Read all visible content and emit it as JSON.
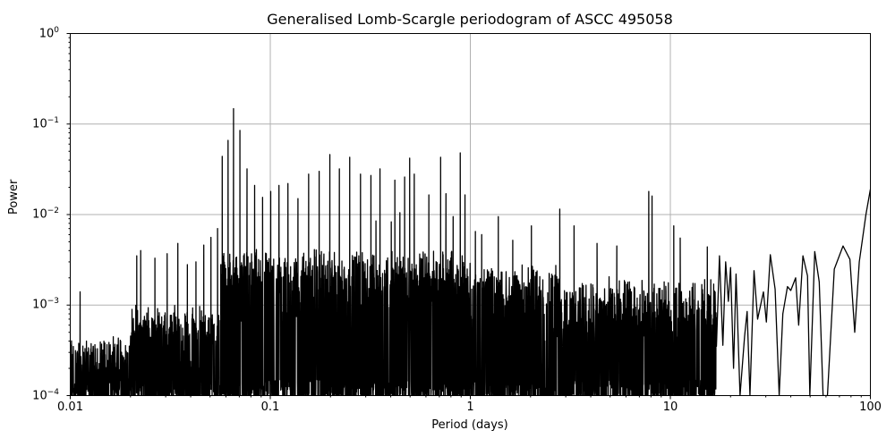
{
  "chart_data": {
    "type": "line",
    "title": "Generalised Lomb-Scargle periodogram of ASCC 495058",
    "xlabel": "Period (days)",
    "ylabel": "Power",
    "xscale": "log",
    "yscale": "log",
    "xlim": [
      0.01,
      100
    ],
    "ylim": [
      0.0001,
      1
    ],
    "grid": true,
    "x_ticks": [
      "0.01",
      "0.1",
      "1",
      "10",
      "100"
    ],
    "y_ticks": [
      {
        "base": "10",
        "exp": "0"
      },
      {
        "base": "10",
        "exp": "−1"
      },
      {
        "base": "10",
        "exp": "−2"
      },
      {
        "base": "10",
        "exp": "−3"
      },
      {
        "base": "10",
        "exp": "−4"
      }
    ],
    "line_color": "#000000",
    "grid_color": "#b0b0b0",
    "notable_peaks": [
      {
        "period": 0.0112,
        "power": 0.0014
      },
      {
        "period": 0.0215,
        "power": 0.0035
      },
      {
        "period": 0.0225,
        "power": 0.004
      },
      {
        "period": 0.0265,
        "power": 0.0033
      },
      {
        "period": 0.0305,
        "power": 0.0037
      },
      {
        "period": 0.0345,
        "power": 0.0048
      },
      {
        "period": 0.0385,
        "power": 0.0028
      },
      {
        "period": 0.0425,
        "power": 0.003
      },
      {
        "period": 0.0465,
        "power": 0.0046
      },
      {
        "period": 0.0505,
        "power": 0.0056
      },
      {
        "period": 0.0545,
        "power": 0.007
      },
      {
        "period": 0.0575,
        "power": 0.044
      },
      {
        "period": 0.0615,
        "power": 0.066
      },
      {
        "period": 0.0655,
        "power": 0.148
      },
      {
        "period": 0.0705,
        "power": 0.085
      },
      {
        "period": 0.0765,
        "power": 0.032
      },
      {
        "period": 0.0835,
        "power": 0.021
      },
      {
        "period": 0.0915,
        "power": 0.0155
      },
      {
        "period": 0.1005,
        "power": 0.018
      },
      {
        "period": 0.1105,
        "power": 0.021
      },
      {
        "period": 0.1225,
        "power": 0.022
      },
      {
        "period": 0.1375,
        "power": 0.015
      },
      {
        "period": 0.1555,
        "power": 0.028
      },
      {
        "period": 0.1755,
        "power": 0.03
      },
      {
        "period": 0.1985,
        "power": 0.046
      },
      {
        "period": 0.2215,
        "power": 0.032
      },
      {
        "period": 0.2495,
        "power": 0.043
      },
      {
        "period": 0.2825,
        "power": 0.028
      },
      {
        "period": 0.3185,
        "power": 0.027
      },
      {
        "period": 0.3375,
        "power": 0.0085
      },
      {
        "period": 0.3535,
        "power": 0.032
      },
      {
        "period": 0.4025,
        "power": 0.0083
      },
      {
        "period": 0.4195,
        "power": 0.024
      },
      {
        "period": 0.4445,
        "power": 0.0105
      },
      {
        "period": 0.4695,
        "power": 0.026
      },
      {
        "period": 0.4975,
        "power": 0.042
      },
      {
        "period": 0.5245,
        "power": 0.028
      },
      {
        "period": 0.6205,
        "power": 0.0165
      },
      {
        "period": 0.7105,
        "power": 0.043
      },
      {
        "period": 0.7555,
        "power": 0.017
      },
      {
        "period": 0.8205,
        "power": 0.0095
      },
      {
        "period": 0.8905,
        "power": 0.048
      },
      {
        "period": 0.9405,
        "power": 0.0165
      },
      {
        "period": 1.06,
        "power": 0.0065
      },
      {
        "period": 1.14,
        "power": 0.006
      },
      {
        "period": 1.38,
        "power": 0.0095
      },
      {
        "period": 1.63,
        "power": 0.0052
      },
      {
        "period": 2.02,
        "power": 0.0075
      },
      {
        "period": 2.8,
        "power": 0.0115
      },
      {
        "period": 3.3,
        "power": 0.0075
      },
      {
        "period": 4.3,
        "power": 0.0048
      },
      {
        "period": 5.4,
        "power": 0.0045
      },
      {
        "period": 7.8,
        "power": 0.018
      },
      {
        "period": 8.1,
        "power": 0.016
      },
      {
        "period": 10.4,
        "power": 0.0075
      },
      {
        "period": 11.2,
        "power": 0.0055
      },
      {
        "period": 15.3,
        "power": 0.0044
      },
      {
        "period": 17.9,
        "power": 0.0035
      },
      {
        "period": 21.3,
        "power": 0.0022
      },
      {
        "period": 25.2,
        "power": 0.0035
      },
      {
        "period": 27.9,
        "power": 0.0013
      },
      {
        "period": 31.6,
        "power": 0.0036
      },
      {
        "period": 38.5,
        "power": 0.0017
      },
      {
        "period": 44.0,
        "power": 0.0021
      },
      {
        "period": 52.7,
        "power": 0.0039
      },
      {
        "period": 62.0,
        "power": 0.0018
      },
      {
        "period": 76.5,
        "power": 0.0045
      },
      {
        "period": 100,
        "power": 0.019
      }
    ],
    "smooth_tail": [
      [
        17.0,
        0.00035
      ],
      [
        17.6,
        0.0035
      ],
      [
        18.3,
        0.00036
      ],
      [
        18.9,
        0.003
      ],
      [
        19.5,
        0.0011
      ],
      [
        20.0,
        0.0026
      ],
      [
        20.7,
        0.0002
      ],
      [
        21.3,
        0.0022
      ],
      [
        22.3,
        0.0001
      ],
      [
        23.5,
        0.00045
      ],
      [
        24.2,
        0.00085
      ],
      [
        25.0,
        0.0001
      ],
      [
        26.2,
        0.0024
      ],
      [
        27.3,
        0.0007
      ],
      [
        29.2,
        0.0014
      ],
      [
        30.2,
        0.00065
      ],
      [
        31.6,
        0.0036
      ],
      [
        33.4,
        0.0015
      ],
      [
        35.0,
        0.0001
      ],
      [
        36.5,
        0.0008
      ],
      [
        38.5,
        0.0016
      ],
      [
        40.0,
        0.00145
      ],
      [
        42.3,
        0.002
      ],
      [
        43.8,
        0.0006
      ],
      [
        46.0,
        0.0035
      ],
      [
        48.5,
        0.0021
      ],
      [
        49.8,
        0.0001
      ],
      [
        52.7,
        0.0039
      ],
      [
        55.5,
        0.0018
      ],
      [
        58.0,
        0.0001
      ],
      [
        61.0,
        0.0001
      ],
      [
        66.0,
        0.0025
      ],
      [
        73.0,
        0.0045
      ],
      [
        79.0,
        0.0032
      ],
      [
        83.5,
        0.0005
      ],
      [
        88.0,
        0.003
      ],
      [
        95.0,
        0.01
      ],
      [
        100,
        0.019
      ]
    ]
  }
}
